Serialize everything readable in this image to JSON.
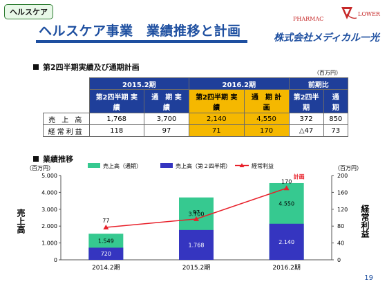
{
  "header": {
    "tag": "ヘルスケア",
    "title": "ヘルスケア事業　業績推移と計画",
    "logo_pharmac": "PHARMAC",
    "logo_flower": "LOWER",
    "company": "株式会社メディカル一光"
  },
  "table_section": {
    "heading": "第2四半期実績及び通期計画",
    "unit": "（百万円）",
    "period_2015": "2015.2期",
    "period_2016": "2016.2期",
    "period_yoy": "前期比",
    "sub_q2_actual": "第2四半期 実　績",
    "sub_full_actual": "通　期 実　績",
    "sub_q2_actual_2016": "第2四半期 実　績",
    "sub_full_plan": "通　期 計　画",
    "sub_yoy_q2": "第2四半期",
    "sub_yoy_full": "通　期",
    "rows": [
      {
        "label": "売 上 高",
        "v1": "1,768",
        "v2": "3,700",
        "v3": "2,140",
        "v4": "4,550",
        "v5": "372",
        "v6": "850"
      },
      {
        "label": "経常利益",
        "v1": "118",
        "v2": "97",
        "v3": "71",
        "v4": "170",
        "v5": "△47",
        "v6": "73"
      }
    ]
  },
  "chart_section": {
    "heading": "業績推移",
    "unit_left": "（百万円）",
    "unit_right": "（百万円）",
    "ylabel_left": "売上高",
    "ylabel_right": "経常利益",
    "legend_full": "売上高（通期）",
    "legend_q2": "売上高（第２四半期）",
    "legend_profit": "経常利益",
    "plan_label": "計画"
  },
  "chart_data": {
    "type": "bar",
    "categories": [
      "2014.2期",
      "2015.2期",
      "2016.2期"
    ],
    "series": [
      {
        "name": "売上高（第２四半期）",
        "values": [
          720,
          1768,
          2140
        ],
        "labels": [
          "720",
          "1.768",
          "2.140"
        ],
        "color": "#3535c0"
      },
      {
        "name": "売上高（通期）",
        "values": [
          1549,
          3700,
          4550
        ],
        "labels": [
          "1.549",
          "3.700",
          "4.550"
        ],
        "color": "#36c990"
      },
      {
        "name": "経常利益",
        "values": [
          77,
          97,
          170
        ],
        "labels": [
          "77",
          "97",
          "170"
        ],
        "color": "#e8202a",
        "axis": "right"
      }
    ],
    "left_ticks": [
      "0",
      "1.000",
      "2.000",
      "3.000",
      "4.000",
      "5.000"
    ],
    "right_ticks": [
      "0",
      "40",
      "80",
      "120",
      "160",
      "200"
    ],
    "ylim_left": [
      0,
      5000
    ],
    "ylim_right": [
      0,
      200
    ],
    "grid": false
  },
  "footer": {
    "page": "19"
  }
}
